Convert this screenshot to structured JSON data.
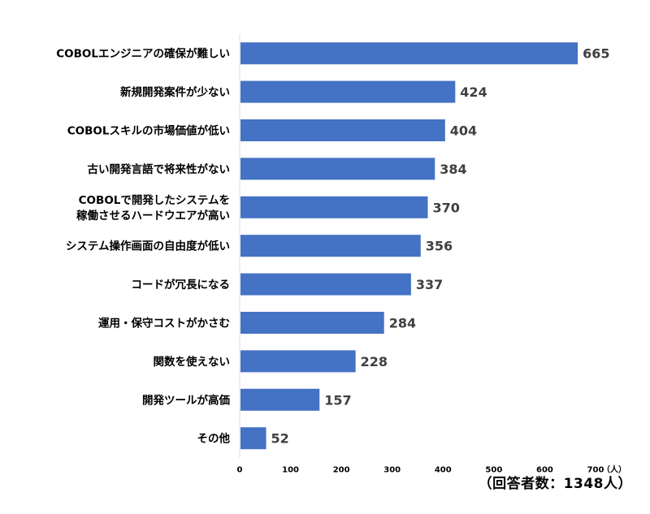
{
  "chart_data": {
    "type": "bar",
    "orientation": "horizontal",
    "categories": [
      [
        "COBOLエンジニアの確保が難しい"
      ],
      [
        "新規開発案件が少ない"
      ],
      [
        "COBOLスキルの市場価値が低い"
      ],
      [
        "古い開発言語で将来性がない"
      ],
      [
        "COBOLで開発したシステムを",
        "稼働させるハードウエアが高い"
      ],
      [
        "システム操作画面の自由度が低い"
      ],
      [
        "コードが冗長になる"
      ],
      [
        "運用・保守コストがかさむ"
      ],
      [
        "関数を使えない"
      ],
      [
        "開発ツールが高価"
      ],
      [
        "その他"
      ]
    ],
    "values": [
      665,
      424,
      404,
      384,
      370,
      356,
      337,
      284,
      228,
      157,
      52
    ],
    "xlim": [
      0,
      700
    ],
    "xticks": [
      0,
      100,
      200,
      300,
      400,
      500,
      600,
      700
    ],
    "x_unit": "（人）",
    "grid": false,
    "legend": "none",
    "bar_color": "#4472c4",
    "data_label_color": "#404040"
  },
  "footnote": "（回答者数：1348人）"
}
